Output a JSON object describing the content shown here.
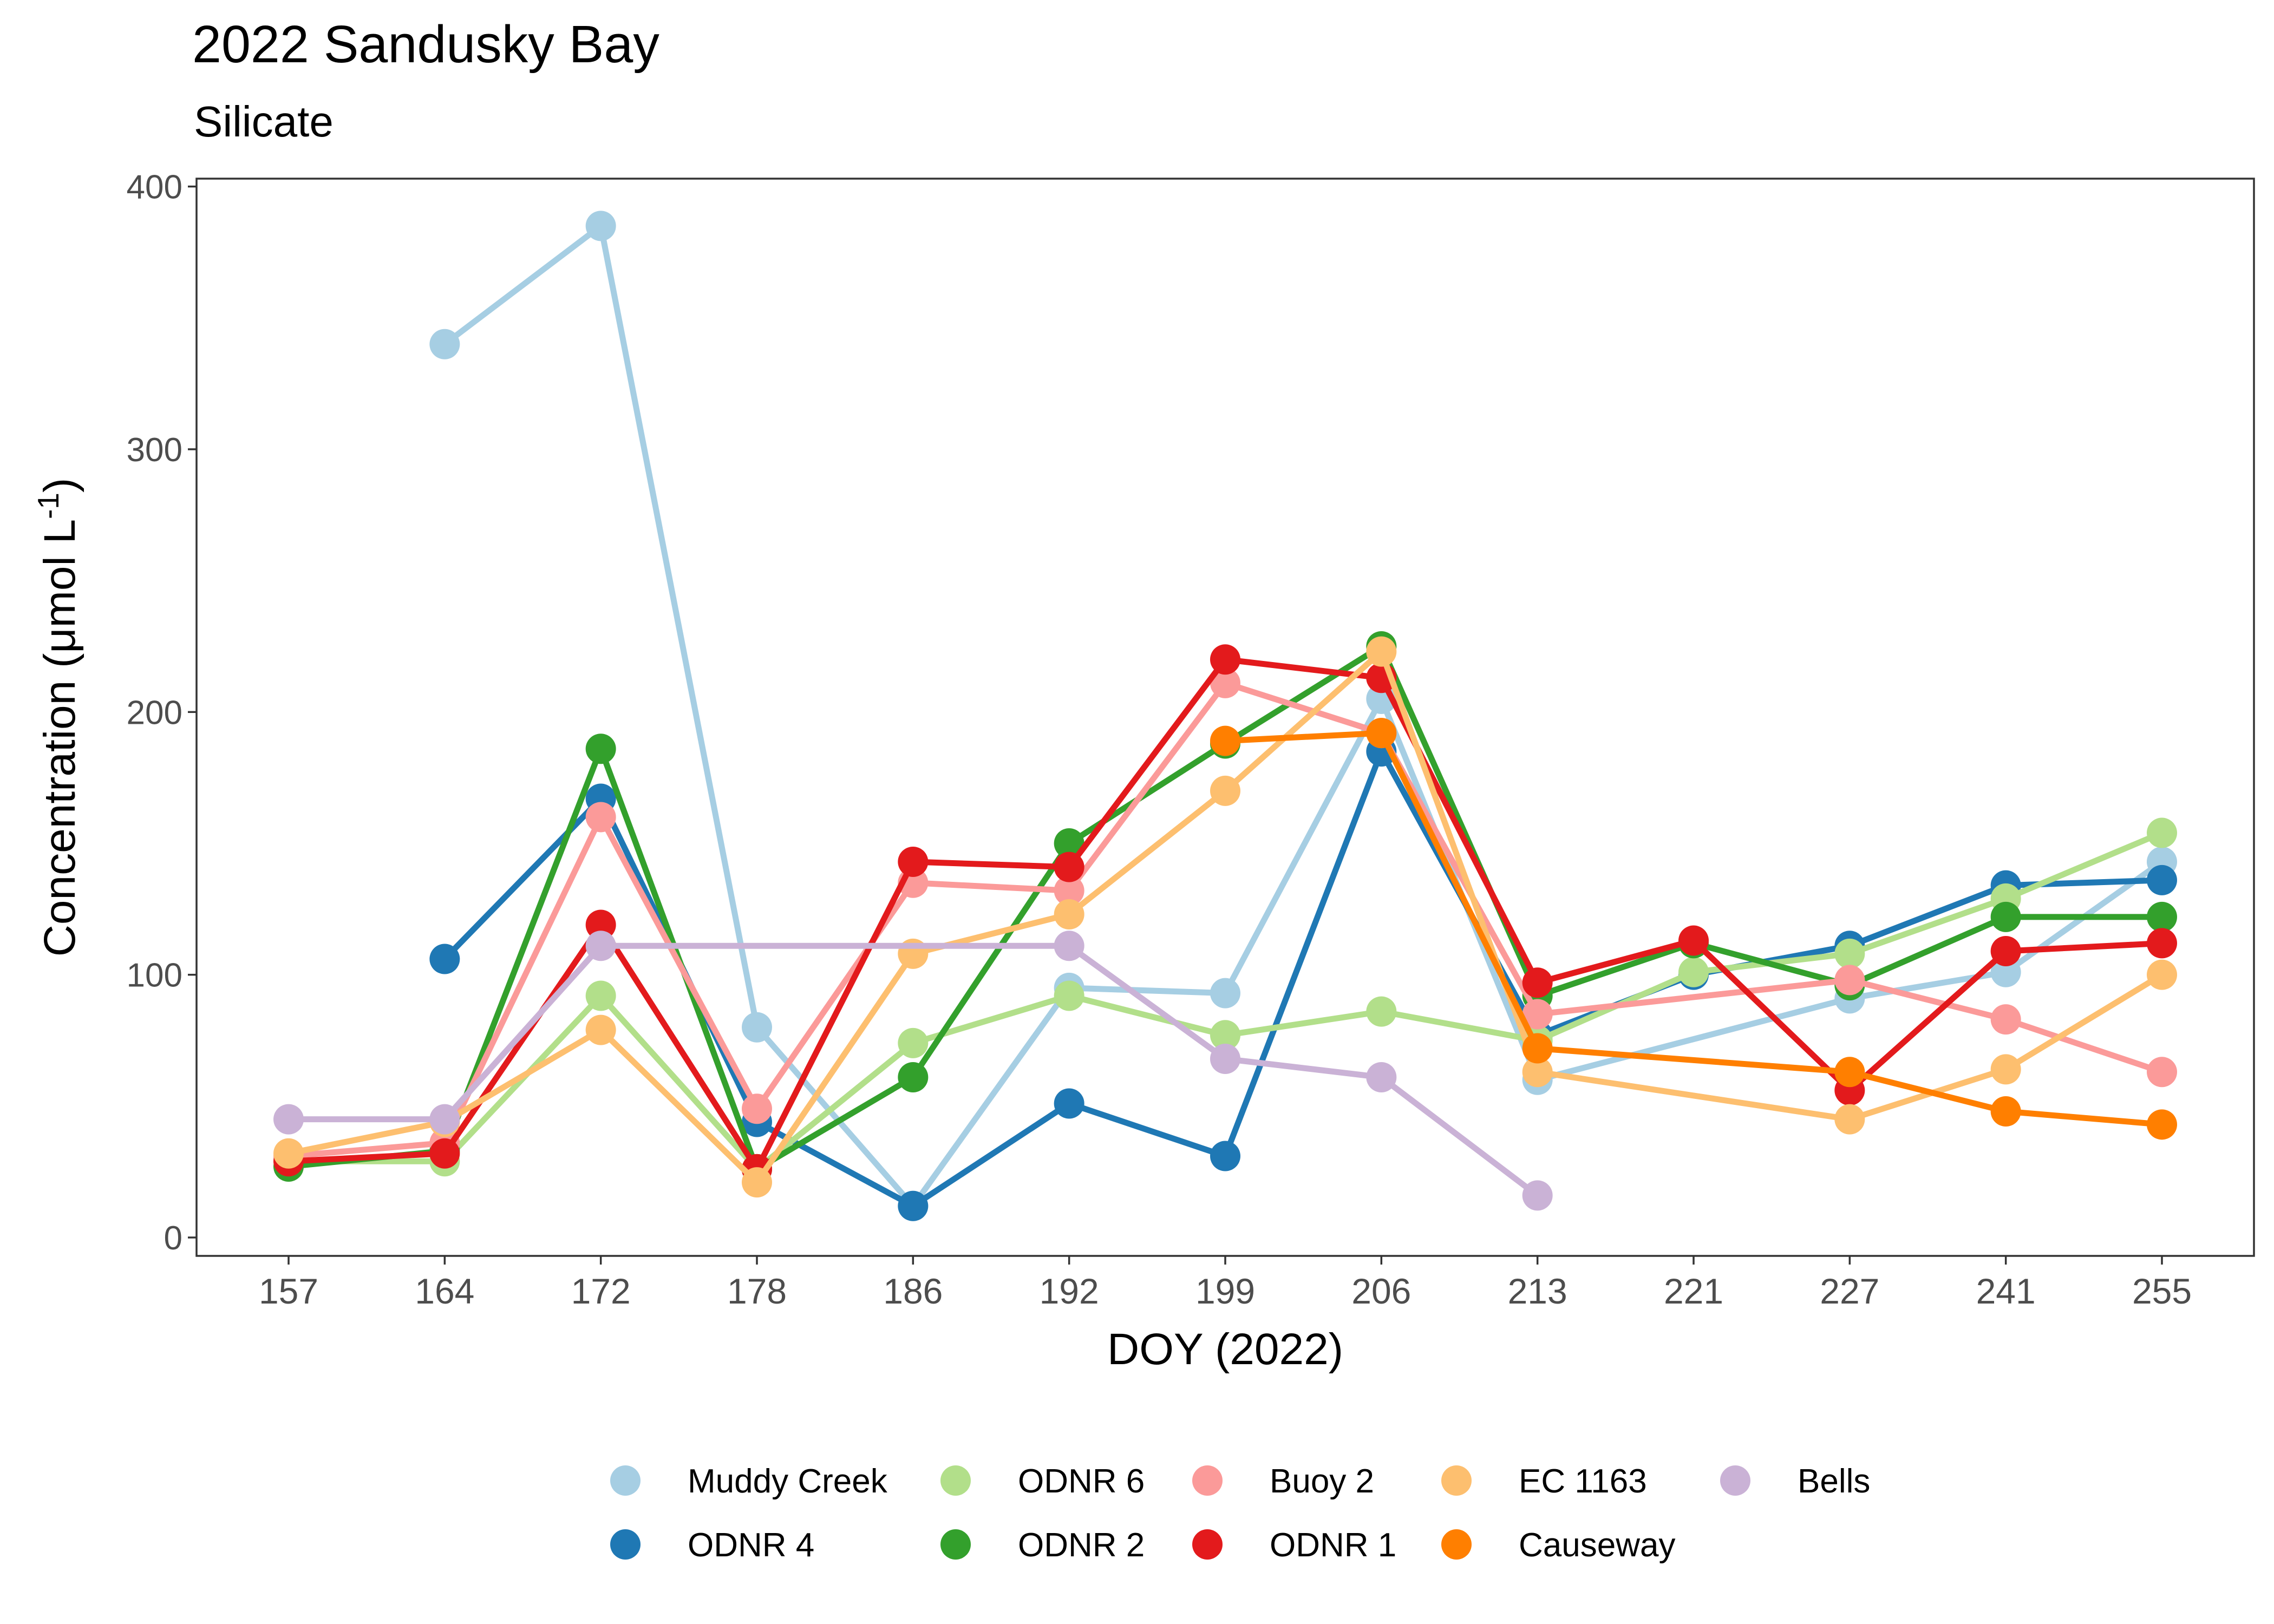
{
  "chart_data": {
    "type": "line",
    "title": "2022 Sandusky Bay",
    "subtitle": "Silicate",
    "xlabel": "DOY (2022)",
    "ylabel": "Concentration (μmol L",
    "ylabel_sup": "-1",
    "ylabel_close": ")",
    "categories": [
      "157",
      "164",
      "172",
      "178",
      "186",
      "192",
      "199",
      "206",
      "213",
      "221",
      "227",
      "241",
      "255"
    ],
    "ylim": [
      -7,
      403
    ],
    "yticks": [
      0,
      100,
      200,
      300,
      400
    ],
    "grid": false,
    "legend_position": "bottom",
    "series": [
      {
        "name": "Muddy Creek",
        "color": "#a6cee3",
        "values": [
          null,
          340,
          385,
          80,
          12,
          95,
          93,
          205,
          60,
          null,
          91,
          101,
          143
        ]
      },
      {
        "name": "ODNR 4",
        "color": "#1f78b4",
        "values": [
          null,
          106,
          167,
          44,
          12,
          51,
          31,
          185,
          77,
          100,
          111,
          134,
          136
        ]
      },
      {
        "name": "ODNR 6",
        "color": "#b2df8a",
        "values": [
          29,
          29,
          92,
          26,
          74,
          92,
          77,
          86,
          75,
          101,
          108,
          129,
          154
        ]
      },
      {
        "name": "ODNR 2",
        "color": "#33a02c",
        "values": [
          27,
          33,
          186,
          26,
          61,
          150,
          188,
          225,
          92,
          112,
          96,
          122,
          122
        ]
      },
      {
        "name": "Buoy 2",
        "color": "#fb9a99",
        "values": [
          31,
          36,
          160,
          49,
          135,
          132,
          211,
          192,
          85,
          null,
          98,
          83,
          63
        ]
      },
      {
        "name": "ODNR 1",
        "color": "#e31a1c",
        "values": [
          29,
          32,
          119,
          26,
          143,
          141,
          220,
          213,
          97,
          113,
          56,
          109,
          112
        ]
      },
      {
        "name": "EC 1163",
        "color": "#fdbf6f",
        "values": [
          32,
          44,
          79,
          21,
          108,
          123,
          170,
          223,
          63,
          null,
          45,
          64,
          100
        ]
      },
      {
        "name": "Causeway",
        "color": "#ff7f00",
        "values": [
          null,
          null,
          null,
          null,
          null,
          null,
          189,
          192,
          72,
          null,
          63,
          48,
          43
        ]
      },
      {
        "name": "Bells",
        "color": "#cab2d6",
        "values": [
          45,
          45,
          111,
          null,
          null,
          111,
          68,
          61,
          16,
          null,
          null,
          null,
          null
        ]
      }
    ],
    "legend_order": [
      [
        "Muddy Creek",
        "ODNR 6",
        "Buoy 2",
        "EC 1163",
        "Bells"
      ],
      [
        "ODNR 4",
        "ODNR 2",
        "ODNR 1",
        "Causeway"
      ]
    ]
  }
}
